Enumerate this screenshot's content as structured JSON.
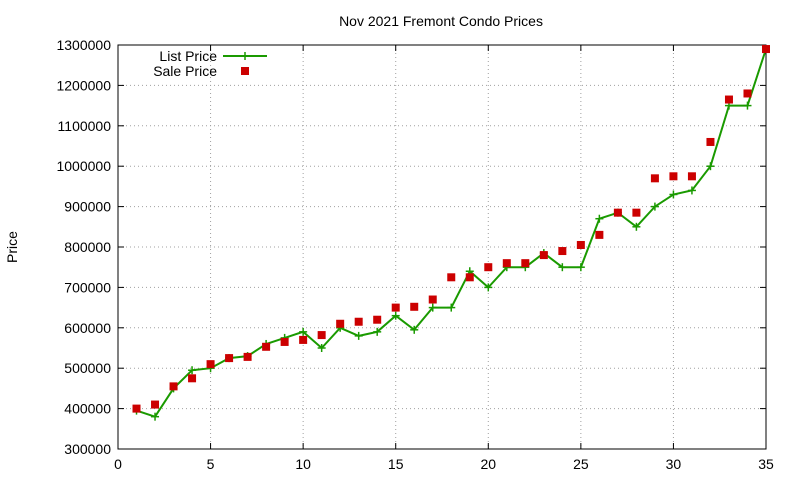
{
  "chart_data": {
    "type": "line",
    "title": "Nov 2021 Fremont Condo Prices",
    "xlabel": "",
    "ylabel": "Price",
    "xlim": [
      0,
      35
    ],
    "ylim": [
      300000,
      1300000
    ],
    "xticks": [
      0,
      5,
      10,
      15,
      20,
      25,
      30,
      35
    ],
    "yticks": [
      300000,
      400000,
      500000,
      600000,
      700000,
      800000,
      900000,
      1000000,
      1100000,
      1200000,
      1300000
    ],
    "grid": true,
    "legend_position": "top-left",
    "series": [
      {
        "name": "List Price",
        "style": "line-with-plus-markers",
        "color": "#1a9a00",
        "x": [
          1,
          2,
          3,
          4,
          5,
          6,
          7,
          8,
          9,
          10,
          11,
          12,
          13,
          14,
          15,
          16,
          17,
          18,
          19,
          20,
          21,
          22,
          23,
          24,
          25,
          26,
          27,
          28,
          29,
          30,
          31,
          32,
          33,
          34,
          35
        ],
        "values": [
          395000,
          380000,
          450000,
          495000,
          500000,
          525000,
          530000,
          560000,
          575000,
          590000,
          550000,
          600000,
          580000,
          590000,
          630000,
          595000,
          650000,
          650000,
          740000,
          700000,
          750000,
          750000,
          785000,
          750000,
          750000,
          870000,
          885000,
          850000,
          900000,
          930000,
          940000,
          1000000,
          1150000,
          1150000,
          1290000
        ]
      },
      {
        "name": "Sale Price",
        "style": "square-markers",
        "color": "#cc0000",
        "x": [
          1,
          2,
          3,
          4,
          5,
          6,
          7,
          8,
          9,
          10,
          11,
          12,
          13,
          14,
          15,
          16,
          17,
          18,
          19,
          20,
          21,
          22,
          23,
          24,
          25,
          26,
          27,
          28,
          29,
          30,
          31,
          32,
          33,
          34,
          35
        ],
        "values": [
          400000,
          410000,
          455000,
          475000,
          510000,
          525000,
          528000,
          553000,
          565000,
          570000,
          582000,
          610000,
          615000,
          620000,
          650000,
          652000,
          670000,
          725000,
          725000,
          750000,
          760000,
          760000,
          780000,
          790000,
          805000,
          830000,
          885000,
          885000,
          970000,
          975000,
          975000,
          1060000,
          1165000,
          1180000,
          1290000
        ]
      }
    ]
  }
}
